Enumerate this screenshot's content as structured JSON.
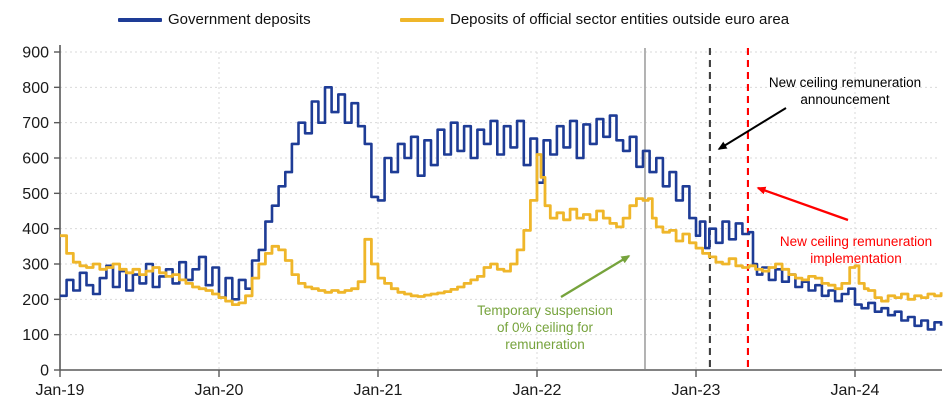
{
  "chart_data": {
    "type": "line",
    "title": "",
    "grid": true,
    "legend_position": "top",
    "x_axis": {
      "tick_labels": [
        "Jan-19",
        "Jan-20",
        "Jan-21",
        "Jan-22",
        "Jan-23",
        "Jan-24"
      ],
      "tick_months": [
        0,
        12,
        24,
        36,
        48,
        60
      ],
      "range_months": [
        0,
        66.5
      ]
    },
    "y_axis": {
      "ticks": [
        0,
        100,
        200,
        300,
        400,
        500,
        600,
        700,
        800,
        900
      ],
      "range": [
        0,
        900
      ]
    },
    "series": [
      {
        "name": "Government deposits",
        "color": "#1E3C96",
        "x": [
          0,
          0.5,
          1,
          1.5,
          2,
          2.5,
          3,
          3.5,
          4,
          4.5,
          5,
          5.5,
          6,
          6.5,
          7,
          7.5,
          8,
          8.5,
          9,
          9.5,
          10,
          10.5,
          11,
          11.5,
          12,
          12.5,
          13,
          13.5,
          14,
          14.5,
          15,
          15.5,
          16,
          16.5,
          17,
          17.5,
          18,
          18.5,
          19,
          19.5,
          20,
          20.5,
          21,
          21.5,
          22,
          22.5,
          23,
          23.5,
          24,
          24.5,
          25,
          25.5,
          26,
          26.5,
          27,
          27.5,
          28,
          28.5,
          29,
          29.5,
          30,
          30.5,
          31,
          31.5,
          32,
          32.5,
          33,
          33.5,
          34,
          34.5,
          35,
          35.5,
          36,
          36.5,
          37,
          37.5,
          38,
          38.5,
          39,
          39.5,
          40,
          40.5,
          41,
          41.5,
          42,
          42.5,
          43,
          43.5,
          44,
          44.5,
          45,
          45.5,
          46,
          46.5,
          47,
          47.5,
          48,
          48.3,
          48.7,
          49,
          49.5,
          50,
          50.5,
          51,
          51.5,
          52,
          52.3,
          52.6,
          53,
          53.5,
          54,
          54.5,
          55,
          55.5,
          56,
          56.5,
          57,
          57.5,
          58,
          58.5,
          59,
          59.5,
          60,
          60.5,
          61,
          61.5,
          62,
          62.5,
          63,
          63.5,
          64,
          64.5,
          65,
          65.5,
          66,
          66.5
        ],
        "values": [
          210,
          255,
          225,
          275,
          240,
          215,
          260,
          295,
          235,
          280,
          225,
          270,
          245,
          300,
          235,
          265,
          285,
          245,
          305,
          255,
          285,
          320,
          240,
          290,
          205,
          260,
          200,
          255,
          230,
          310,
          340,
          420,
          465,
          520,
          560,
          640,
          700,
          670,
          760,
          700,
          800,
          730,
          780,
          700,
          755,
          690,
          640,
          490,
          480,
          600,
          560,
          640,
          600,
          660,
          550,
          650,
          580,
          680,
          610,
          700,
          620,
          690,
          600,
          680,
          640,
          705,
          610,
          690,
          630,
          705,
          580,
          655,
          530,
          650,
          610,
          690,
          630,
          705,
          600,
          695,
          640,
          710,
          660,
          720,
          650,
          620,
          660,
          575,
          620,
          560,
          600,
          520,
          560,
          480,
          520,
          430,
          380,
          420,
          345,
          400,
          360,
          420,
          370,
          415,
          385,
          390,
          300,
          270,
          290,
          255,
          285,
          250,
          270,
          235,
          250,
          225,
          240,
          210,
          225,
          195,
          215,
          230,
          185,
          175,
          190,
          165,
          175,
          155,
          165,
          140,
          150,
          125,
          140,
          115,
          135,
          125
        ]
      },
      {
        "name": "Deposits of official sector entities outside euro area",
        "color": "#EFB62A",
        "x": [
          0,
          0.5,
          1,
          1.5,
          2,
          2.5,
          3,
          3.5,
          4,
          4.5,
          5,
          5.5,
          6,
          6.5,
          7,
          7.5,
          8,
          8.5,
          9,
          9.5,
          10,
          10.5,
          11,
          11.5,
          12,
          12.5,
          13,
          13.5,
          14,
          14.5,
          15,
          15.5,
          16,
          16.5,
          17,
          17.5,
          18,
          18.5,
          19,
          19.5,
          20,
          20.5,
          21,
          21.5,
          22,
          22.5,
          23,
          23.5,
          24,
          24.5,
          25,
          25.5,
          26,
          26.5,
          27,
          27.5,
          28,
          28.5,
          29,
          29.5,
          30,
          30.5,
          31,
          31.5,
          32,
          32.5,
          33,
          33.5,
          34,
          34.5,
          35,
          35.5,
          36,
          36.3,
          36.6,
          37,
          37.5,
          38,
          38.5,
          39,
          39.5,
          40,
          40.5,
          41,
          41.5,
          42,
          42.5,
          43,
          43.5,
          44,
          44.4,
          44.7,
          45,
          45.5,
          46,
          46.5,
          47,
          47.5,
          48,
          48.5,
          49,
          49.5,
          50,
          50.5,
          51,
          51.5,
          52,
          52.5,
          53,
          53.5,
          54,
          54.5,
          55,
          55.5,
          56,
          56.5,
          57,
          57.5,
          58,
          58.5,
          59,
          59.6,
          60,
          60.3,
          60.7,
          61,
          61.5,
          62,
          62.5,
          63,
          63.5,
          64,
          64.5,
          65,
          65.5,
          66,
          66.5
        ],
        "values": [
          380,
          330,
          305,
          295,
          290,
          300,
          285,
          290,
          300,
          285,
          275,
          285,
          270,
          280,
          290,
          275,
          265,
          270,
          255,
          245,
          235,
          230,
          225,
          215,
          205,
          195,
          185,
          190,
          210,
          260,
          300,
          330,
          350,
          340,
          310,
          270,
          245,
          235,
          230,
          225,
          220,
          225,
          220,
          225,
          230,
          250,
          370,
          300,
          260,
          245,
          230,
          220,
          215,
          210,
          208,
          212,
          215,
          218,
          222,
          228,
          235,
          245,
          255,
          265,
          290,
          300,
          285,
          280,
          300,
          340,
          395,
          480,
          610,
          545,
          465,
          430,
          445,
          425,
          455,
          430,
          440,
          425,
          450,
          430,
          415,
          405,
          430,
          465,
          485,
          480,
          485,
          430,
          405,
          390,
          395,
          365,
          385,
          360,
          345,
          330,
          320,
          305,
          300,
          315,
          295,
          290,
          295,
          285,
          280,
          290,
          300,
          285,
          270,
          260,
          255,
          265,
          260,
          245,
          240,
          230,
          245,
          290,
          295,
          245,
          230,
          225,
          205,
          195,
          210,
          205,
          215,
          200,
          210,
          205,
          215,
          210,
          220
        ]
      }
    ],
    "event_lines": [
      {
        "id": "suspension-line",
        "month": 44.15,
        "style": "solid",
        "color": "#A6A6A6"
      },
      {
        "id": "announcement-line",
        "month": 49.05,
        "style": "dashed",
        "color": "#3F3F3F"
      },
      {
        "id": "implementation-line",
        "month": 51.92,
        "style": "dashed",
        "color": "#FF0000"
      }
    ],
    "annotations": [
      {
        "id": "announcement",
        "lines": [
          "New ceiling remuneration",
          "announcement"
        ],
        "color": "#000000"
      },
      {
        "id": "implementation",
        "lines": [
          "New ceiling remuneration",
          "implementation"
        ],
        "color": "#FF0000"
      },
      {
        "id": "suspension",
        "lines": [
          "Temporary suspension",
          "of 0% ceiling for",
          "remuneration"
        ],
        "color": "#76A33C"
      }
    ]
  }
}
